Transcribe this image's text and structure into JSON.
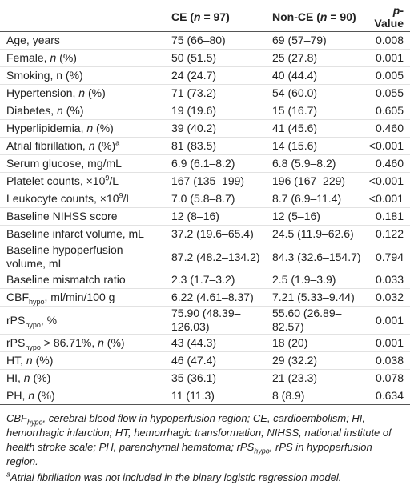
{
  "table": {
    "columns": [
      "",
      [
        {
          "text": "CE ("
        },
        {
          "text": "n",
          "style": "italic"
        },
        {
          "text": " = 97)"
        }
      ],
      [
        {
          "text": "Non-CE ("
        },
        {
          "text": "n",
          "style": "italic"
        },
        {
          "text": " = 90)"
        }
      ],
      [
        {
          "text": "p",
          "style": "italic"
        },
        {
          "text": "-Value"
        }
      ]
    ],
    "rows": [
      [
        "Age, years",
        "75 (66–80)",
        "69 (57–79)",
        "0.008"
      ],
      [
        [
          {
            "text": "Female, "
          },
          {
            "text": "n",
            "style": "italic"
          },
          {
            "text": " (%)"
          }
        ],
        "50 (51.5)",
        "25 (27.8)",
        "0.001"
      ],
      [
        "Smoking, n (%)",
        "24 (24.7)",
        "40 (44.4)",
        "0.005"
      ],
      [
        [
          {
            "text": "Hypertension, "
          },
          {
            "text": "n",
            "style": "italic"
          },
          {
            "text": " (%)"
          }
        ],
        "71 (73.2)",
        "54 (60.0)",
        "0.055"
      ],
      [
        [
          {
            "text": "Diabetes, "
          },
          {
            "text": "n",
            "style": "italic"
          },
          {
            "text": " (%)"
          }
        ],
        "19 (19.6)",
        "15 (16.7)",
        "0.605"
      ],
      [
        [
          {
            "text": "Hyperlipidemia, "
          },
          {
            "text": "n",
            "style": "italic"
          },
          {
            "text": " (%)"
          }
        ],
        "39 (40.2)",
        "41 (45.6)",
        "0.460"
      ],
      [
        [
          {
            "text": "Atrial fibrillation, "
          },
          {
            "text": "n",
            "style": "italic"
          },
          {
            "text": " (%)"
          },
          {
            "text": "a",
            "style": "sup"
          }
        ],
        "81 (83.5)",
        "14 (15.6)",
        "<0.001"
      ],
      [
        "Serum glucose, mg/mL",
        "6.9 (6.1–8.2)",
        "6.8 (5.9–8.2)",
        "0.460"
      ],
      [
        [
          {
            "text": "Platelet counts, ×10"
          },
          {
            "text": "9",
            "style": "sup"
          },
          {
            "text": "/L"
          }
        ],
        "167 (135–199)",
        "196 (167–229)",
        "<0.001"
      ],
      [
        [
          {
            "text": "Leukocyte counts, ×10"
          },
          {
            "text": "9",
            "style": "sup"
          },
          {
            "text": "/L"
          }
        ],
        "7.0 (5.8–8.7)",
        "8.7 (6.9–11.4)",
        "<0.001"
      ],
      [
        "Baseline NIHSS score",
        "12 (8–16)",
        "12 (5–16)",
        "0.181"
      ],
      [
        "Baseline infarct volume, mL",
        "37.2 (19.6–65.4)",
        "24.5 (11.9–62.6)",
        "0.122"
      ],
      [
        "Baseline hypoperfusion volume, mL",
        "87.2 (48.2–134.2)",
        "84.3 (32.6–154.7)",
        "0.794"
      ],
      [
        "Baseline mismatch ratio",
        "2.3 (1.7–3.2)",
        "2.5 (1.9–3.9)",
        "0.033"
      ],
      [
        [
          {
            "text": "CBF"
          },
          {
            "text": "hypo",
            "style": "sub"
          },
          {
            "text": ", ml/min/100 g"
          }
        ],
        "6.22 (4.61–8.37)",
        "7.21 (5.33–9.44)",
        "0.032"
      ],
      [
        [
          {
            "text": "rPS"
          },
          {
            "text": "hypo",
            "style": "sub"
          },
          {
            "text": ", %"
          }
        ],
        "75.90 (48.39–126.03)",
        "55.60 (26.89–82.57)",
        "0.001"
      ],
      [
        [
          {
            "text": "rPS"
          },
          {
            "text": "hypo",
            "style": "sub"
          },
          {
            "text": " > 86.71%, "
          },
          {
            "text": "n",
            "style": "italic"
          },
          {
            "text": " (%)"
          }
        ],
        "43 (44.3)",
        "18 (20)",
        "0.001"
      ],
      [
        [
          {
            "text": "HT, "
          },
          {
            "text": "n",
            "style": "italic"
          },
          {
            "text": " (%)"
          }
        ],
        "46 (47.4)",
        "29 (32.2)",
        "0.038"
      ],
      [
        [
          {
            "text": "HI, "
          },
          {
            "text": "n",
            "style": "italic"
          },
          {
            "text": " (%)"
          }
        ],
        "35 (36.1)",
        "21 (23.3)",
        "0.078"
      ],
      [
        [
          {
            "text": "PH, "
          },
          {
            "text": "n",
            "style": "italic"
          },
          {
            "text": " (%)"
          }
        ],
        "11 (11.3)",
        "8 (8.9)",
        "0.634"
      ]
    ],
    "footnotes": [
      [
        {
          "text": "CBF"
        },
        {
          "text": "hypo",
          "style": "sub"
        },
        {
          "text": ", cerebral blood flow in hypoperfusion region; CE, cardioembolism; HI, hemorrhagic infarction; HT, hemorrhagic transformation; NIHSS, national institute of health stroke scale; PH, parenchymal hematoma; rPS"
        },
        {
          "text": "hypo",
          "style": "sub"
        },
        {
          "text": ", rPS in hypoperfusion region."
        }
      ],
      [
        {
          "text": "a",
          "style": "sup"
        },
        {
          "text": "Atrial fibrillation was not included in the binary logistic regression model."
        }
      ]
    ]
  }
}
